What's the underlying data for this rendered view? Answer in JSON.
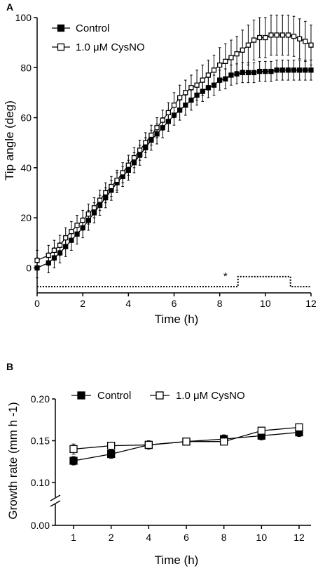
{
  "chart_data": [
    {
      "panel": "A",
      "type": "line",
      "xlabel": "Time (h)",
      "ylabel": "Tip angle  (deg)",
      "xlim": [
        0,
        12
      ],
      "ylim": [
        -10,
        100
      ],
      "xticks": [
        0,
        2,
        4,
        6,
        8,
        10,
        12
      ],
      "yticks": [
        0,
        20,
        40,
        60,
        80,
        100
      ],
      "grid": false,
      "legend_position": "top-left",
      "x": [
        0,
        0.5,
        0.75,
        1,
        1.25,
        1.5,
        1.75,
        2,
        2.25,
        2.5,
        2.75,
        3,
        3.25,
        3.5,
        3.75,
        4,
        4.25,
        4.5,
        4.75,
        5,
        5.25,
        5.5,
        5.75,
        6,
        6.25,
        6.5,
        6.75,
        7,
        7.25,
        7.5,
        7.75,
        8,
        8.25,
        8.5,
        8.75,
        9,
        9.25,
        9.5,
        9.75,
        10,
        10.25,
        10.5,
        10.75,
        11,
        11.25,
        11.5,
        11.75,
        12
      ],
      "series": [
        {
          "name": "Control",
          "marker": "filled-square",
          "color": "#000000",
          "values": [
            0,
            2,
            4,
            6,
            8.5,
            11,
            13.5,
            16,
            19,
            22,
            25,
            28,
            31,
            34,
            36.5,
            39,
            42,
            45,
            48,
            51,
            53.5,
            56,
            58.5,
            61,
            63,
            65,
            67,
            69,
            70.5,
            72,
            73,
            75,
            75.5,
            77,
            77.5,
            78,
            78,
            78,
            78.5,
            78.5,
            78.5,
            79,
            79,
            79,
            79,
            79,
            79,
            79
          ],
          "error": [
            4,
            4,
            4,
            4,
            4,
            4,
            4,
            4,
            4,
            4,
            4,
            4,
            4,
            4,
            4,
            4,
            4,
            4,
            4,
            4,
            4,
            4,
            4,
            4,
            4,
            4,
            4,
            4,
            4,
            4,
            4,
            4,
            4,
            4,
            4,
            4,
            4,
            4,
            4,
            4,
            4,
            4,
            4,
            4,
            4,
            4,
            4,
            4
          ]
        },
        {
          "name": "1.0 μM CysNO",
          "marker": "open-square",
          "color": "#000000",
          "values": [
            3,
            5,
            7,
            9,
            12,
            14.5,
            17,
            19,
            21.5,
            24,
            27,
            30,
            32.5,
            35,
            38,
            41,
            44,
            47,
            50,
            53,
            56,
            59,
            62,
            65,
            68,
            70,
            72,
            73,
            75,
            77,
            79,
            81,
            82.5,
            84,
            85.5,
            87,
            89,
            91,
            92,
            92,
            93,
            93,
            93,
            93,
            92.5,
            91.5,
            90.5,
            89
          ],
          "error": [
            4,
            4,
            4,
            4,
            4,
            4,
            4,
            4,
            4,
            4,
            4,
            4,
            4,
            4,
            4,
            4,
            4,
            4,
            4,
            4,
            4,
            4,
            4,
            5,
            5,
            5,
            5,
            6,
            6,
            6,
            6,
            7,
            7,
            7,
            7,
            8,
            8,
            8,
            8,
            8,
            8,
            8,
            8,
            8,
            8,
            8,
            8,
            8
          ]
        }
      ],
      "significance_marker": {
        "label": "*",
        "x": 8.25,
        "baseline_y": -7.5,
        "elevated_y": -3.5,
        "start_x": 8.8,
        "end_x": 11.1
      }
    },
    {
      "panel": "B",
      "type": "line",
      "xlabel": "Time (h)",
      "ylabel": "Growth rate (mm h -1)",
      "categories": [
        "1",
        "2",
        "4",
        "6",
        "8",
        "10",
        "12"
      ],
      "yticks": [
        "0.00",
        "0.10",
        "0.15",
        "0.20"
      ],
      "ylim": [
        0.1,
        0.2
      ],
      "axis_break": true,
      "grid": false,
      "legend_position": "top",
      "series": [
        {
          "name": "Control",
          "marker": "filled-square",
          "color": "#000000",
          "values": [
            0.126,
            0.134,
            0.145,
            0.149,
            0.152,
            0.156,
            0.16
          ],
          "error": [
            0.005,
            0.005,
            0.005,
            0.004,
            0.005,
            0.005,
            0.005
          ]
        },
        {
          "name": "1.0 μM CysNO",
          "marker": "open-square",
          "color": "#000000",
          "values": [
            0.14,
            0.144,
            0.145,
            0.149,
            0.149,
            0.162,
            0.166
          ],
          "error": [
            0.006,
            0.004,
            0.004,
            0.004,
            0.004,
            0.004,
            0.003
          ]
        }
      ]
    }
  ]
}
